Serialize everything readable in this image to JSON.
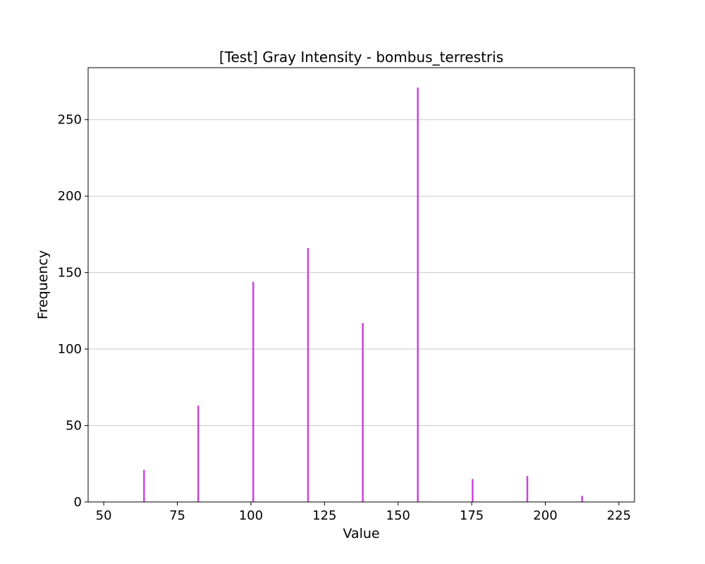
{
  "chart_data": {
    "type": "bar",
    "title": "[Test] Gray Intensity - bombus_terrestris",
    "xlabel": "Value",
    "ylabel": "Frequency",
    "xlim": [
      44.7,
      230.3
    ],
    "ylim": [
      0,
      284
    ],
    "xticks": [
      50,
      75,
      100,
      125,
      150,
      175,
      200,
      225
    ],
    "yticks": [
      0,
      50,
      100,
      150,
      200,
      250
    ],
    "grid": "y",
    "bar_color": "#cc44dd",
    "bar_width": 0.6,
    "bars": [
      {
        "x": 63.7,
        "y": 21
      },
      {
        "x": 82.1,
        "y": 63
      },
      {
        "x": 100.8,
        "y": 144
      },
      {
        "x": 119.4,
        "y": 166
      },
      {
        "x": 138.0,
        "y": 117
      },
      {
        "x": 156.7,
        "y": 271
      },
      {
        "x": 175.3,
        "y": 15
      },
      {
        "x": 193.9,
        "y": 17
      },
      {
        "x": 212.5,
        "y": 4
      }
    ]
  }
}
